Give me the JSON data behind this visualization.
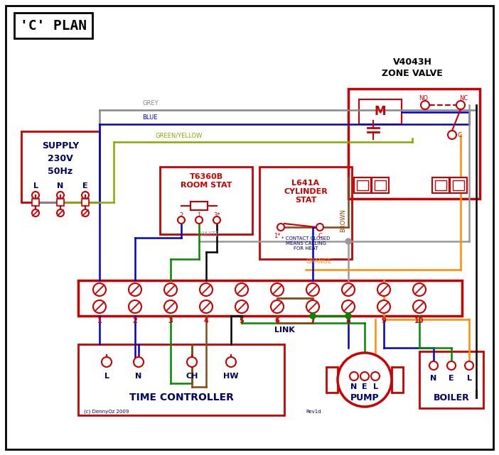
{
  "title": "'C' PLAN",
  "bg_color": "#ffffff",
  "border_color": "#000000",
  "red": "#cc0000",
  "blue": "#0000cc",
  "green": "#008800",
  "grey": "#888888",
  "brown": "#8B4513",
  "orange": "#FF8C00",
  "white_wire": "#999999",
  "green_yellow": "#88aa00",
  "black": "#000000",
  "label_color": "#000066",
  "supply_text": [
    "SUPPLY",
    "230V",
    "50Hz"
  ],
  "lne_labels": [
    "L",
    "N",
    "E"
  ],
  "zone_valve_title": "V4043H\nZONE VALVE",
  "room_stat_title": "T6360B\nROOM STAT",
  "cyl_stat_title": "L641A\nCYLINDER\nSTAT",
  "terminal_title": "LINK",
  "time_ctrl_title": "TIME CONTROLLER",
  "pump_title": "PUMP",
  "boiler_title": "BOILER",
  "copyright": "(c) DennyOz 2009",
  "rev": "Rev1d"
}
